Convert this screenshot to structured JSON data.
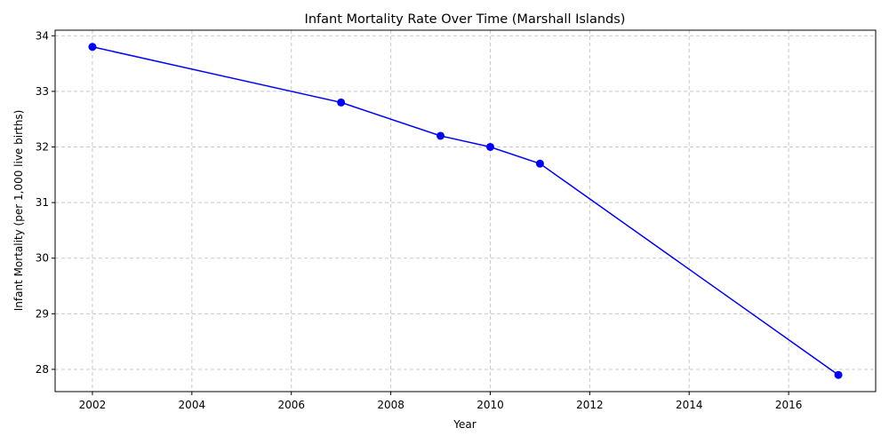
{
  "chart_data": {
    "type": "line",
    "title": "Infant Mortality Rate Over Time (Marshall Islands)",
    "xlabel": "Year",
    "ylabel": "Infant Mortality (per 1,000 live births)",
    "x": [
      2002,
      2007,
      2009,
      2010,
      2011,
      2017
    ],
    "series": [
      {
        "values": [
          33.8,
          32.8,
          32.2,
          32.0,
          31.7,
          27.9
        ]
      }
    ],
    "xlim": [
      2001.25,
      2017.75
    ],
    "ylim": [
      27.6,
      34.1
    ],
    "xticks": [
      "2002",
      "2004",
      "2006",
      "2008",
      "2010",
      "2012",
      "2014",
      "2016"
    ],
    "yticks": [
      "28",
      "29",
      "30",
      "31",
      "32",
      "33",
      "34"
    ],
    "grid": true,
    "marker": "circle",
    "colors": {
      "line": "#0000ff",
      "grid": "#c8c8c8",
      "axis": "#000000"
    }
  }
}
